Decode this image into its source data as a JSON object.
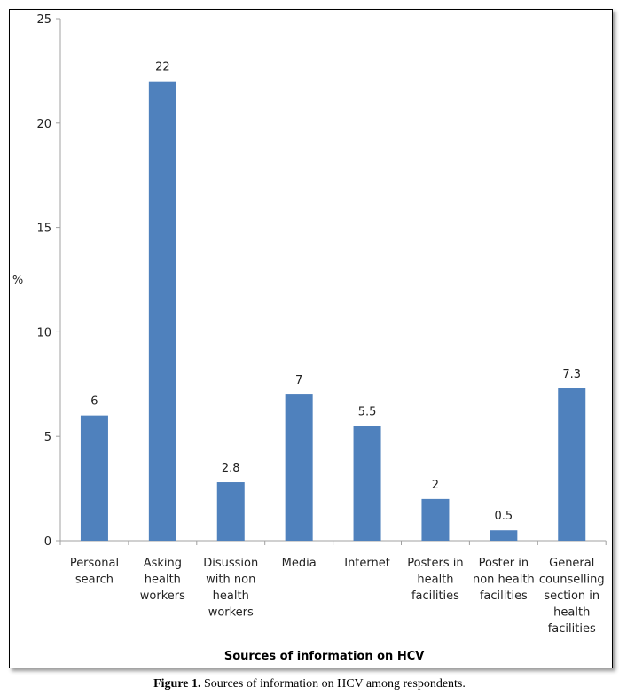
{
  "chart_data": {
    "type": "bar",
    "title": "",
    "xlabel": "Sources of information on HCV",
    "ylabel": "%",
    "ylim": [
      0,
      25
    ],
    "yticks": [
      "0",
      "5",
      "10",
      "15",
      "20",
      "25"
    ],
    "grid": false,
    "legend": "none",
    "categories": [
      [
        "Personal",
        "search"
      ],
      [
        "Asking",
        "health",
        "workers"
      ],
      [
        "Disussion",
        "with non",
        "health",
        "workers"
      ],
      [
        "Media"
      ],
      [
        "Internet"
      ],
      [
        "Posters in",
        "health",
        "facilities"
      ],
      [
        "Poster in",
        "non health",
        "facilities"
      ],
      [
        "General",
        "counselling",
        "section in",
        "health",
        "facilities"
      ]
    ],
    "values": [
      6,
      22,
      2.8,
      7,
      5.5,
      2,
      0.5,
      7.3
    ],
    "value_labels": [
      "6",
      "22",
      "2.8",
      "7",
      "5.5",
      "2",
      "0.5",
      "7.3"
    ],
    "bar_color": "#4f81bd"
  },
  "caption": {
    "label": "Figure 1.",
    "text": " Sources of information on HCV among respondents."
  }
}
